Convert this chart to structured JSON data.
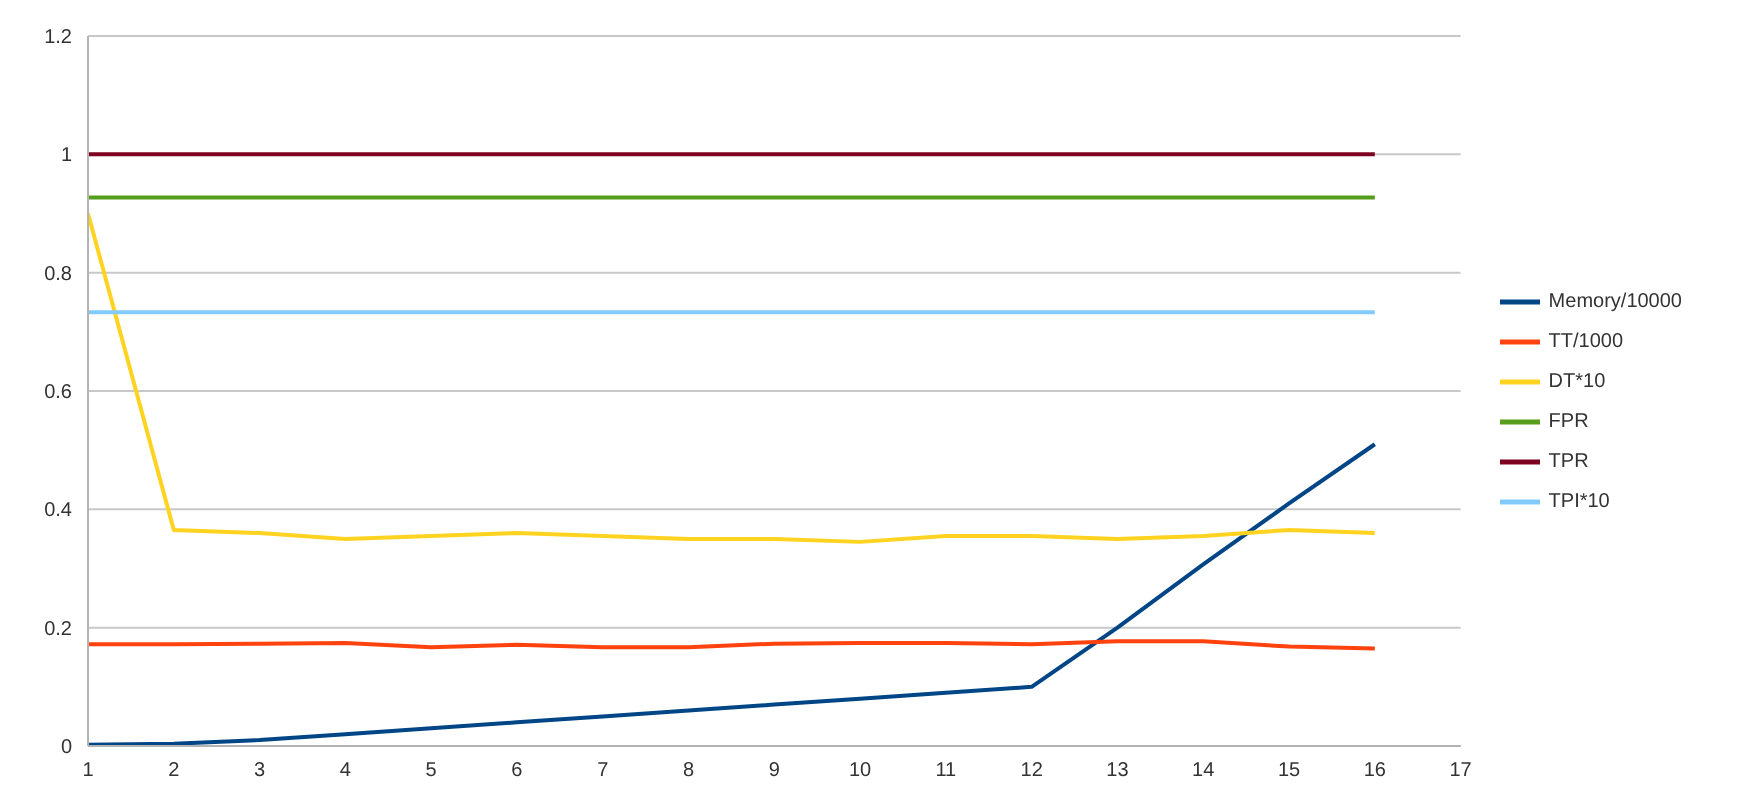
{
  "chart_data": {
    "type": "line",
    "x": [
      1,
      2,
      3,
      4,
      5,
      6,
      7,
      8,
      9,
      10,
      11,
      12,
      13,
      14,
      15,
      16
    ],
    "series": [
      {
        "name": "Memory/10000",
        "color": "#004586",
        "values": [
          0.002,
          0.004,
          0.01,
          0.02,
          0.03,
          0.04,
          0.05,
          0.06,
          0.07,
          0.08,
          0.09,
          0.1,
          0.2,
          0.307,
          0.41,
          0.51
        ]
      },
      {
        "name": "TT/1000",
        "color": "#ff420e",
        "values": [
          0.172,
          0.172,
          0.173,
          0.174,
          0.167,
          0.171,
          0.167,
          0.167,
          0.173,
          0.174,
          0.174,
          0.172,
          0.177,
          0.177,
          0.168,
          0.165
        ]
      },
      {
        "name": "DT*10",
        "color": "#ffd320",
        "values": [
          0.9,
          0.365,
          0.36,
          0.35,
          0.355,
          0.36,
          0.355,
          0.35,
          0.35,
          0.345,
          0.355,
          0.355,
          0.35,
          0.355,
          0.365,
          0.36
        ]
      },
      {
        "name": "FPR",
        "color": "#579d1c",
        "values": [
          0.927,
          0.927,
          0.927,
          0.927,
          0.927,
          0.927,
          0.927,
          0.927,
          0.927,
          0.927,
          0.927,
          0.927,
          0.927,
          0.927,
          0.927,
          0.927
        ]
      },
      {
        "name": "TPR",
        "color": "#7e0021",
        "values": [
          1,
          1,
          1,
          1,
          1,
          1,
          1,
          1,
          1,
          1,
          1,
          1,
          1,
          1,
          1,
          1
        ]
      },
      {
        "name": "TPI*10",
        "color": "#83caff",
        "values": [
          0.733,
          0.733,
          0.733,
          0.733,
          0.733,
          0.733,
          0.733,
          0.733,
          0.733,
          0.733,
          0.733,
          0.733,
          0.733,
          0.733,
          0.733,
          0.733
        ]
      }
    ],
    "xlim": [
      1,
      17
    ],
    "xticks": [
      1,
      2,
      3,
      4,
      5,
      6,
      7,
      8,
      9,
      10,
      11,
      12,
      13,
      14,
      15,
      16,
      17
    ],
    "ylim": [
      0,
      1.2
    ],
    "yticks": [
      0,
      0.2,
      0.4,
      0.6,
      0.8,
      1,
      1.2
    ],
    "grid": "y",
    "legend": "right",
    "marker": "none",
    "line_style": "solid"
  }
}
